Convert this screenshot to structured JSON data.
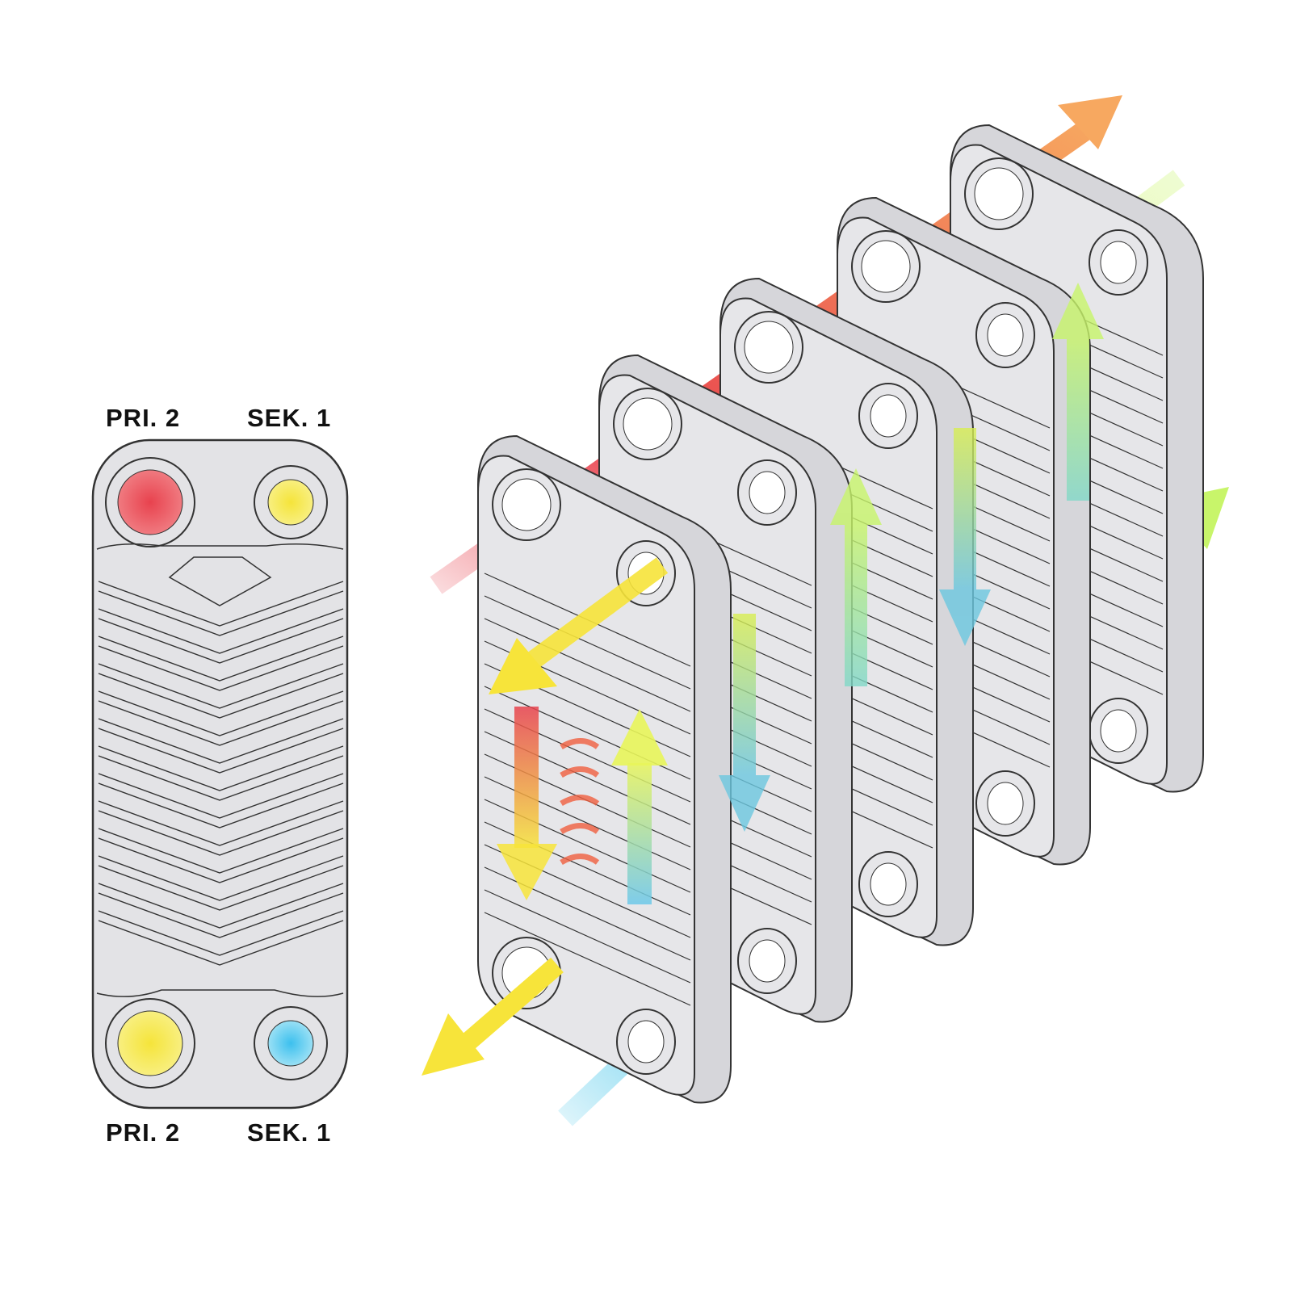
{
  "labels": {
    "top_left": "PRI. 2",
    "top_right": "SEK. 1",
    "bottom_left": "PRI. 2",
    "bottom_right": "SEK. 1"
  },
  "colors": {
    "plate": "#e3e3e6",
    "outline": "#333333",
    "primary_hot": "#e8424e",
    "primary_cool": "#f7e43a",
    "secondary_cold": "#4fc8ea",
    "secondary_warm": "#c8f56a",
    "outlet_orange": "#f7a860"
  }
}
